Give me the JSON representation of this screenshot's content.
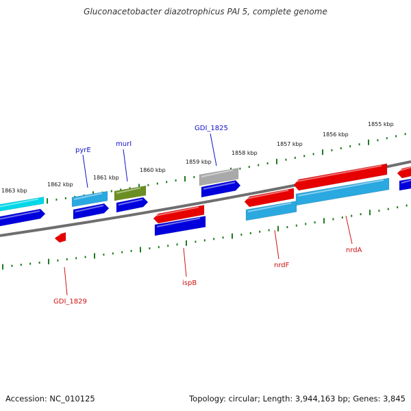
{
  "title": "Gluconacetobacter diazotrophicus PAI 5, complete genome",
  "footer": {
    "accession": "Accession: NC_010125",
    "summary": "Topology: circular; Length: 3,944,163 bp; Genes: 3,845"
  },
  "colors": {
    "backbone": "#6e6e6e",
    "tick": "#1e7a1e",
    "label_blue": "#1010c8",
    "label_red": "#cc1111",
    "red": "#e60000",
    "blue": "#0000dd",
    "cyan": "#00d8e8",
    "lightblue": "#2aa8e0",
    "olive": "#6b8e23",
    "grey": "#a9a9a9"
  },
  "scale_labels": [
    "1863 kbp",
    "1862 kbp",
    "1861 kbp",
    "1860 kbp",
    "1859 kbp",
    "1858 kbp",
    "1857 kbp",
    "1856 kbp",
    "1855 kbp"
  ],
  "gene_labels": [
    {
      "name": "GDI_1825",
      "color": "blue"
    },
    {
      "name": "pyrE",
      "color": "blue"
    },
    {
      "name": "murI",
      "color": "blue"
    },
    {
      "name": "ispB",
      "color": "red"
    },
    {
      "name": "GDI_1829",
      "color": "red"
    },
    {
      "name": "nrdF",
      "color": "red"
    },
    {
      "name": "nrdA",
      "color": "red"
    }
  ]
}
